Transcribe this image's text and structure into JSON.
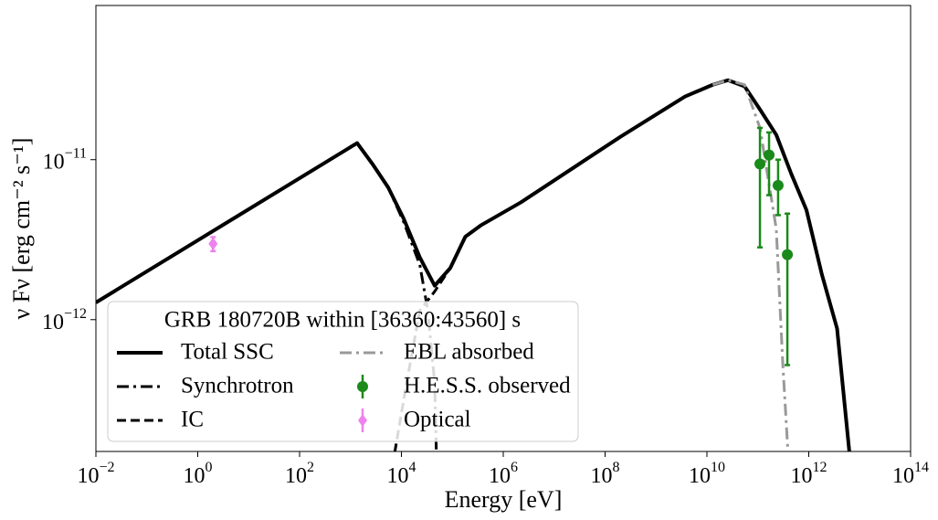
{
  "chart_data": {
    "type": "line",
    "xlabel": "Energy [eV]",
    "ylabel": "ν Fν [erg cm⁻² s⁻¹]",
    "xscale": "log",
    "yscale": "log",
    "xlim": [
      0.01,
      100000000000000.0
    ],
    "ylim": [
      1.5e-13,
      9.2e-11
    ],
    "xticks": [
      {
        "value": 0.01,
        "label": "10",
        "exponent": "−2"
      },
      {
        "value": 1,
        "label": "10",
        "exponent": "0"
      },
      {
        "value": 100,
        "label": "10",
        "exponent": "2"
      },
      {
        "value": 10000,
        "label": "10",
        "exponent": "4"
      },
      {
        "value": 1000000,
        "label": "10",
        "exponent": "6"
      },
      {
        "value": 100000000,
        "label": "10",
        "exponent": "8"
      },
      {
        "value": 10000000000,
        "label": "10",
        "exponent": "10"
      },
      {
        "value": 1000000000000,
        "label": "10",
        "exponent": "12"
      },
      {
        "value": 100000000000000,
        "label": "10",
        "exponent": "14"
      }
    ],
    "yticks": [
      {
        "value": 1e-12,
        "label": "10",
        "exponent": "−12"
      },
      {
        "value": 1e-11,
        "label": "10",
        "exponent": "−11"
      }
    ],
    "grid": false,
    "legend": {
      "title": "GRB 180720B within [36360:43560] s",
      "loc": "lower left",
      "columns": 2
    },
    "series": [
      {
        "name": "Total SSC",
        "kind": "line",
        "color": "#000000",
        "dash": "solid",
        "width": 4,
        "x": [
          0.01,
          1350,
          2700,
          5500,
          11000,
          23000,
          45000,
          91000,
          180000,
          370000,
          2200000,
          200000000,
          3700000000,
          13000000000,
          26000000000,
          55000000000,
          110000000000,
          230000000000,
          450000000000,
          900000000000,
          1800000000000,
          3600000000000,
          7100000000000
        ],
        "values": [
          1.28e-12,
          1.27e-11,
          9.4e-12,
          6.7e-12,
          4.3e-12,
          2.45e-12,
          1.63e-12,
          2.1e-12,
          3.3e-12,
          3.9e-12,
          5.4e-12,
          1.39e-11,
          2.48e-11,
          2.94e-11,
          3.14e-11,
          2.87e-11,
          2.06e-11,
          1.43e-11,
          8.2e-12,
          4.85e-12,
          1.93e-12,
          8.8e-13,
          1e-13
        ]
      },
      {
        "name": "Synchrotron",
        "kind": "line",
        "color": "#000000",
        "dash": "dashdot",
        "width": 3,
        "x": [
          0.01,
          1350,
          2700,
          5500,
          11000,
          23000,
          33000,
          45000,
          50000
        ],
        "values": [
          1.28e-12,
          1.27e-11,
          9.4e-12,
          6.7e-12,
          4.1e-12,
          2.2e-12,
          1.14e-12,
          4e-13,
          1e-13
        ]
      },
      {
        "name": "IC",
        "kind": "line",
        "color": "#000000",
        "dash": "dashed",
        "width": 3,
        "x": [
          6000,
          12600,
          23000,
          45000,
          91000,
          180000,
          370000,
          2200000,
          200000000,
          3700000000,
          13000000000,
          26000000000,
          55000000000,
          110000000000,
          230000000000,
          450000000000,
          900000000000,
          1800000000000,
          3600000000000,
          7100000000000
        ],
        "values": [
          1e-13,
          4e-13,
          1.14e-12,
          1.5e-12,
          2.1e-12,
          3.3e-12,
          3.9e-12,
          5.4e-12,
          1.39e-11,
          2.48e-11,
          2.94e-11,
          3.14e-11,
          2.87e-11,
          2.06e-11,
          1.43e-11,
          8.2e-12,
          4.85e-12,
          1.93e-12,
          8.8e-13,
          1e-13
        ]
      },
      {
        "name": "EBL absorbed",
        "kind": "line",
        "color": "#999999",
        "dash": "dashdot",
        "width": 3,
        "x": [
          13000000000,
          26000000000,
          55000000000,
          110000000000,
          230000000000,
          310000000000,
          420000000000
        ],
        "values": [
          2.94e-11,
          3.14e-11,
          2.94e-11,
          1.58e-11,
          3.7e-12,
          5.2e-13,
          1e-13
        ]
      },
      {
        "name": "H.E.S.S. observed",
        "kind": "errorbar",
        "marker": "circle",
        "color": "#1a8a1a",
        "x": [
          110000000000,
          166000000000,
          250000000000,
          380000000000
        ],
        "values": [
          9.4e-12,
          1.07e-11,
          6.9e-12,
          2.55e-12
        ],
        "yerr_low": [
          6.57e-12,
          4.7e-12,
          2.4e-12,
          2.03e-12
        ],
        "yerr_high": [
          6.4e-12,
          4.1e-12,
          3.1e-12,
          2.05e-12
        ]
      },
      {
        "name": "Optical",
        "kind": "errorbar",
        "marker": "diamond",
        "color": "#ee82ee",
        "x": [
          2
        ],
        "values": [
          2.98e-12
        ],
        "yerr_low": [
          3e-13
        ],
        "yerr_high": [
          3e-13
        ]
      }
    ]
  }
}
